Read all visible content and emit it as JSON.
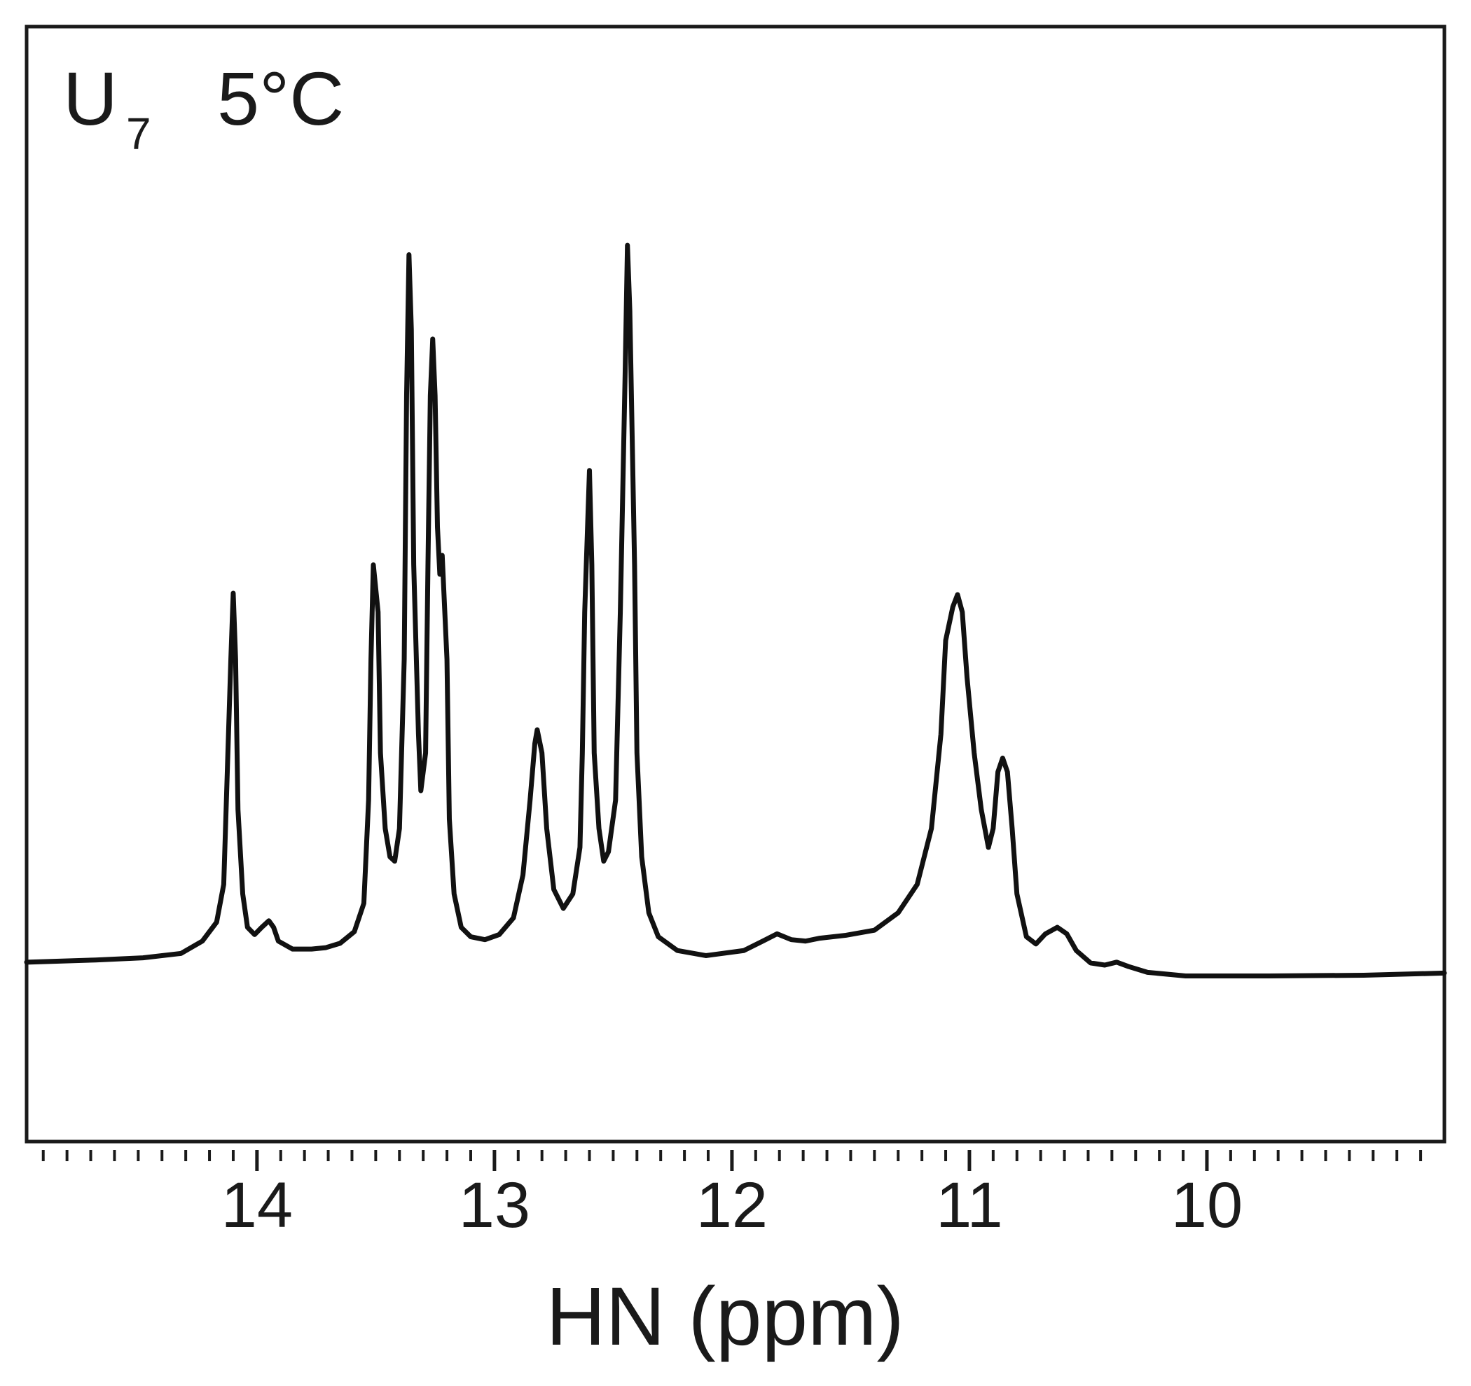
{
  "chart_data": {
    "type": "line",
    "label": "U",
    "label_subscript": "7",
    "temperature": "5°C",
    "x_label": "HN (ppm)",
    "color": "#111111",
    "xlim": [
      14.97,
      9.0
    ],
    "ylim": [
      -0.237,
      1.298
    ],
    "xticks": [
      14,
      13,
      12,
      11,
      10
    ],
    "xminorticks": [
      14.9,
      14.8,
      14.7,
      14.6,
      14.5,
      14.4,
      14.3,
      14.2,
      14.1,
      13.9,
      13.8,
      13.7,
      13.6,
      13.5,
      13.4,
      13.3,
      13.2,
      13.1,
      12.9,
      12.8,
      12.7,
      12.6,
      12.5,
      12.4,
      12.3,
      12.2,
      12.1,
      11.9,
      11.8,
      11.7,
      11.6,
      11.5,
      11.4,
      11.3,
      11.2,
      11.1,
      10.9,
      10.8,
      10.7,
      10.6,
      10.5,
      10.4,
      10.3,
      10.2,
      10.1,
      9.9,
      9.8,
      9.7,
      9.6,
      9.5,
      9.4,
      9.3,
      9.2,
      9.1
    ],
    "x": [
      14.97,
      14.68,
      14.48,
      14.32,
      14.23,
      14.17,
      14.14,
      14.13,
      14.11,
      14.1,
      14.09,
      14.08,
      14.06,
      14.04,
      14.01,
      13.98,
      13.95,
      13.93,
      13.91,
      13.85,
      13.77,
      13.71,
      13.65,
      13.59,
      13.55,
      13.53,
      13.52,
      13.51,
      13.49,
      13.48,
      13.46,
      13.44,
      13.42,
      13.4,
      13.38,
      13.37,
      13.36,
      13.35,
      13.34,
      13.32,
      13.31,
      13.29,
      13.28,
      13.27,
      13.26,
      13.25,
      13.24,
      13.23,
      13.22,
      13.2,
      13.19,
      13.17,
      13.14,
      13.1,
      13.04,
      12.98,
      12.92,
      12.88,
      12.85,
      12.83,
      12.82,
      12.8,
      12.78,
      12.75,
      12.71,
      12.67,
      12.64,
      12.63,
      12.62,
      12.6,
      12.59,
      12.58,
      12.56,
      12.54,
      12.52,
      12.49,
      12.47,
      12.45,
      12.44,
      12.43,
      12.41,
      12.4,
      12.38,
      12.35,
      12.31,
      12.23,
      12.11,
      11.95,
      11.87,
      11.81,
      11.75,
      11.69,
      11.63,
      11.52,
      11.4,
      11.3,
      11.22,
      11.16,
      11.12,
      11.1,
      11.07,
      11.05,
      11.03,
      11.01,
      10.98,
      10.95,
      10.92,
      10.9,
      10.88,
      10.86,
      10.84,
      10.82,
      10.8,
      10.76,
      10.72,
      10.68,
      10.63,
      10.59,
      10.55,
      10.49,
      10.43,
      10.38,
      10.33,
      10.25,
      10.09,
      9.74,
      9.34,
      9.0
    ],
    "values": [
      0.01,
      0.013,
      0.016,
      0.022,
      0.039,
      0.065,
      0.117,
      0.22,
      0.427,
      0.518,
      0.427,
      0.22,
      0.104,
      0.058,
      0.048,
      0.058,
      0.067,
      0.058,
      0.039,
      0.028,
      0.028,
      0.03,
      0.036,
      0.052,
      0.091,
      0.233,
      0.427,
      0.557,
      0.492,
      0.298,
      0.194,
      0.155,
      0.149,
      0.194,
      0.427,
      0.79,
      0.984,
      0.881,
      0.557,
      0.324,
      0.246,
      0.298,
      0.557,
      0.79,
      0.868,
      0.79,
      0.609,
      0.544,
      0.57,
      0.427,
      0.207,
      0.104,
      0.058,
      0.045,
      0.041,
      0.048,
      0.071,
      0.13,
      0.233,
      0.311,
      0.33,
      0.298,
      0.194,
      0.11,
      0.084,
      0.104,
      0.168,
      0.298,
      0.492,
      0.687,
      0.557,
      0.298,
      0.194,
      0.149,
      0.162,
      0.233,
      0.492,
      0.816,
      0.997,
      0.907,
      0.557,
      0.298,
      0.155,
      0.078,
      0.045,
      0.026,
      0.019,
      0.026,
      0.039,
      0.049,
      0.041,
      0.039,
      0.043,
      0.047,
      0.054,
      0.078,
      0.117,
      0.194,
      0.324,
      0.453,
      0.499,
      0.516,
      0.492,
      0.402,
      0.298,
      0.22,
      0.168,
      0.194,
      0.272,
      0.291,
      0.272,
      0.194,
      0.104,
      0.045,
      0.035,
      0.049,
      0.058,
      0.049,
      0.026,
      0.009,
      0.006,
      0.01,
      0.004,
      -0.004,
      -0.009,
      -0.009,
      -0.008,
      -0.005
    ]
  }
}
